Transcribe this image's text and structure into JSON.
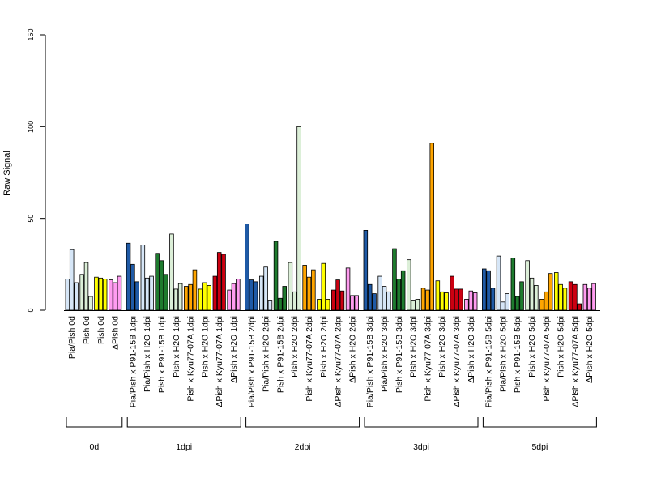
{
  "chart_data": {
    "type": "bar",
    "ylabel": "Raw Signal",
    "ylim": [
      0,
      150
    ],
    "yticks": [
      0,
      50,
      100,
      150
    ],
    "grid": false,
    "legend": "none",
    "colors": {
      "light_blue": "#d6e6f7",
      "dark_blue": "#1f5aa6",
      "light_green": "#dcefd8",
      "dark_green": "#1e7b2e",
      "orange": "#ffa500",
      "yellow": "#ffff00",
      "red": "#cc0011",
      "pink": "#ff9cf0"
    },
    "groups": [
      {
        "label": "0d",
        "categories": [
          {
            "label": "Pia/Pish 0d",
            "color": "light_blue",
            "values": [
              17,
              33,
              15
            ]
          },
          {
            "label": "Pish 0d",
            "color": "light_green",
            "values": [
              19.5,
              26,
              7.5
            ]
          },
          {
            "label": "Pish 0d",
            "color": "yellow",
            "values": [
              18,
              17.5,
              17
            ]
          },
          {
            "label": "ΔPish 0d",
            "color": "pink",
            "values": [
              16.5,
              15,
              18.5
            ]
          }
        ]
      },
      {
        "label": "1dpi",
        "categories": [
          {
            "label": "Pia/Pish x P91-15B 1dpi",
            "color": "dark_blue",
            "values": [
              36.5,
              25,
              15.5
            ]
          },
          {
            "label": "Pia/Pish x H2O 1dpi",
            "color": "light_blue",
            "values": [
              35.5,
              17.5,
              18.5
            ]
          },
          {
            "label": "Pish x P91-15B 1dpi",
            "color": "dark_green",
            "values": [
              31,
              27,
              19.5
            ]
          },
          {
            "label": "Pish x H2O 1dpi",
            "color": "light_green",
            "values": [
              41.5,
              11.5,
              14.5
            ]
          },
          {
            "label": "Pish x Kyu77-07A 1dpi",
            "color": "orange",
            "values": [
              13,
              14,
              22
            ]
          },
          {
            "label": "Pish x H2O 1dpi",
            "color": "yellow",
            "values": [
              11.5,
              15,
              13.5
            ]
          },
          {
            "label": "ΔPish x Kyu77-07A 1dpi",
            "color": "red",
            "values": [
              18.5,
              31.5,
              30.5
            ]
          },
          {
            "label": "ΔPish x H2O 1dpi",
            "color": "pink",
            "values": [
              11,
              14.5,
              17
            ]
          }
        ]
      },
      {
        "label": "2dpi",
        "categories": [
          {
            "label": "Pia/Pish x P91-15B 2dpi",
            "color": "dark_blue",
            "values": [
              47,
              16.5,
              15.5
            ]
          },
          {
            "label": "Pia/Pish x H2O 2dpi",
            "color": "light_blue",
            "values": [
              18.5,
              23.5,
              5.5
            ]
          },
          {
            "label": "Pish x P91-15B 2dpi",
            "color": "dark_green",
            "values": [
              37.5,
              6.5,
              13
            ]
          },
          {
            "label": "Pish x H2O 2dpi",
            "color": "light_green",
            "values": [
              26,
              10,
              100
            ]
          },
          {
            "label": "Pish x Kyu77-07A 2dpi",
            "color": "orange",
            "values": [
              24.5,
              18,
              22
            ]
          },
          {
            "label": "Pish x H2O 2dpi",
            "color": "yellow",
            "values": [
              6,
              25.5,
              6
            ]
          },
          {
            "label": "ΔPish x Kyu77-07A 2dpi",
            "color": "red",
            "values": [
              11,
              16.5,
              10.5
            ]
          },
          {
            "label": "ΔPish x H2O 2dpi",
            "color": "pink",
            "values": [
              23,
              8,
              8
            ]
          }
        ]
      },
      {
        "label": "3dpi",
        "categories": [
          {
            "label": "Pia/Pish x P91-15B 3dpi",
            "color": "dark_blue",
            "values": [
              43.5,
              14,
              9
            ]
          },
          {
            "label": "Pia/Pish x H2O 3dpi",
            "color": "light_blue",
            "values": [
              18.5,
              13,
              10
            ]
          },
          {
            "label": "Pish x P91-15B 3dpi",
            "color": "dark_green",
            "values": [
              33.5,
              17,
              21.5
            ]
          },
          {
            "label": "Pish x H2O 3dpi",
            "color": "light_green",
            "values": [
              27.5,
              5.5,
              6
            ]
          },
          {
            "label": "Pish x Kyu77-07A 3dpi",
            "color": "orange",
            "values": [
              12,
              11,
              91
            ]
          },
          {
            "label": "Pish x H2O 3dpi",
            "color": "yellow",
            "values": [
              16,
              10,
              9.5
            ]
          },
          {
            "label": "ΔPish x Kyu77-07A 3dpi",
            "color": "red",
            "values": [
              18.5,
              11.5,
              11.5
            ]
          },
          {
            "label": "ΔPish x H2O 3dpi",
            "color": "pink",
            "values": [
              6,
              10.5,
              9.5
            ]
          }
        ]
      },
      {
        "label": "5dpi",
        "categories": [
          {
            "label": "Pia/Pish x P91-15B 5dpi",
            "color": "dark_blue",
            "values": [
              22.5,
              21.5,
              12
            ]
          },
          {
            "label": "Pia/Pish x H2O 5dpi",
            "color": "light_blue",
            "values": [
              29.5,
              4.5,
              9
            ]
          },
          {
            "label": "Pish x P91-15B 5dpi",
            "color": "dark_green",
            "values": [
              28.5,
              7.5,
              15.5
            ]
          },
          {
            "label": "Pish x H2O 5dpi",
            "color": "light_green",
            "values": [
              27,
              17.5,
              13.5
            ]
          },
          {
            "label": "Pish x Kyu77-07A 5dpi",
            "color": "orange",
            "values": [
              6,
              10,
              20
            ]
          },
          {
            "label": "Pish x H2O 5dpi",
            "color": "yellow",
            "values": [
              20.5,
              14,
              12
            ]
          },
          {
            "label": "ΔPish x Kyu77-07A 5dpi",
            "color": "red",
            "values": [
              15.5,
              14,
              3.5
            ]
          },
          {
            "label": "ΔPish x H2O 5dpi",
            "color": "pink",
            "values": [
              14,
              12,
              14.5
            ]
          }
        ]
      }
    ]
  }
}
